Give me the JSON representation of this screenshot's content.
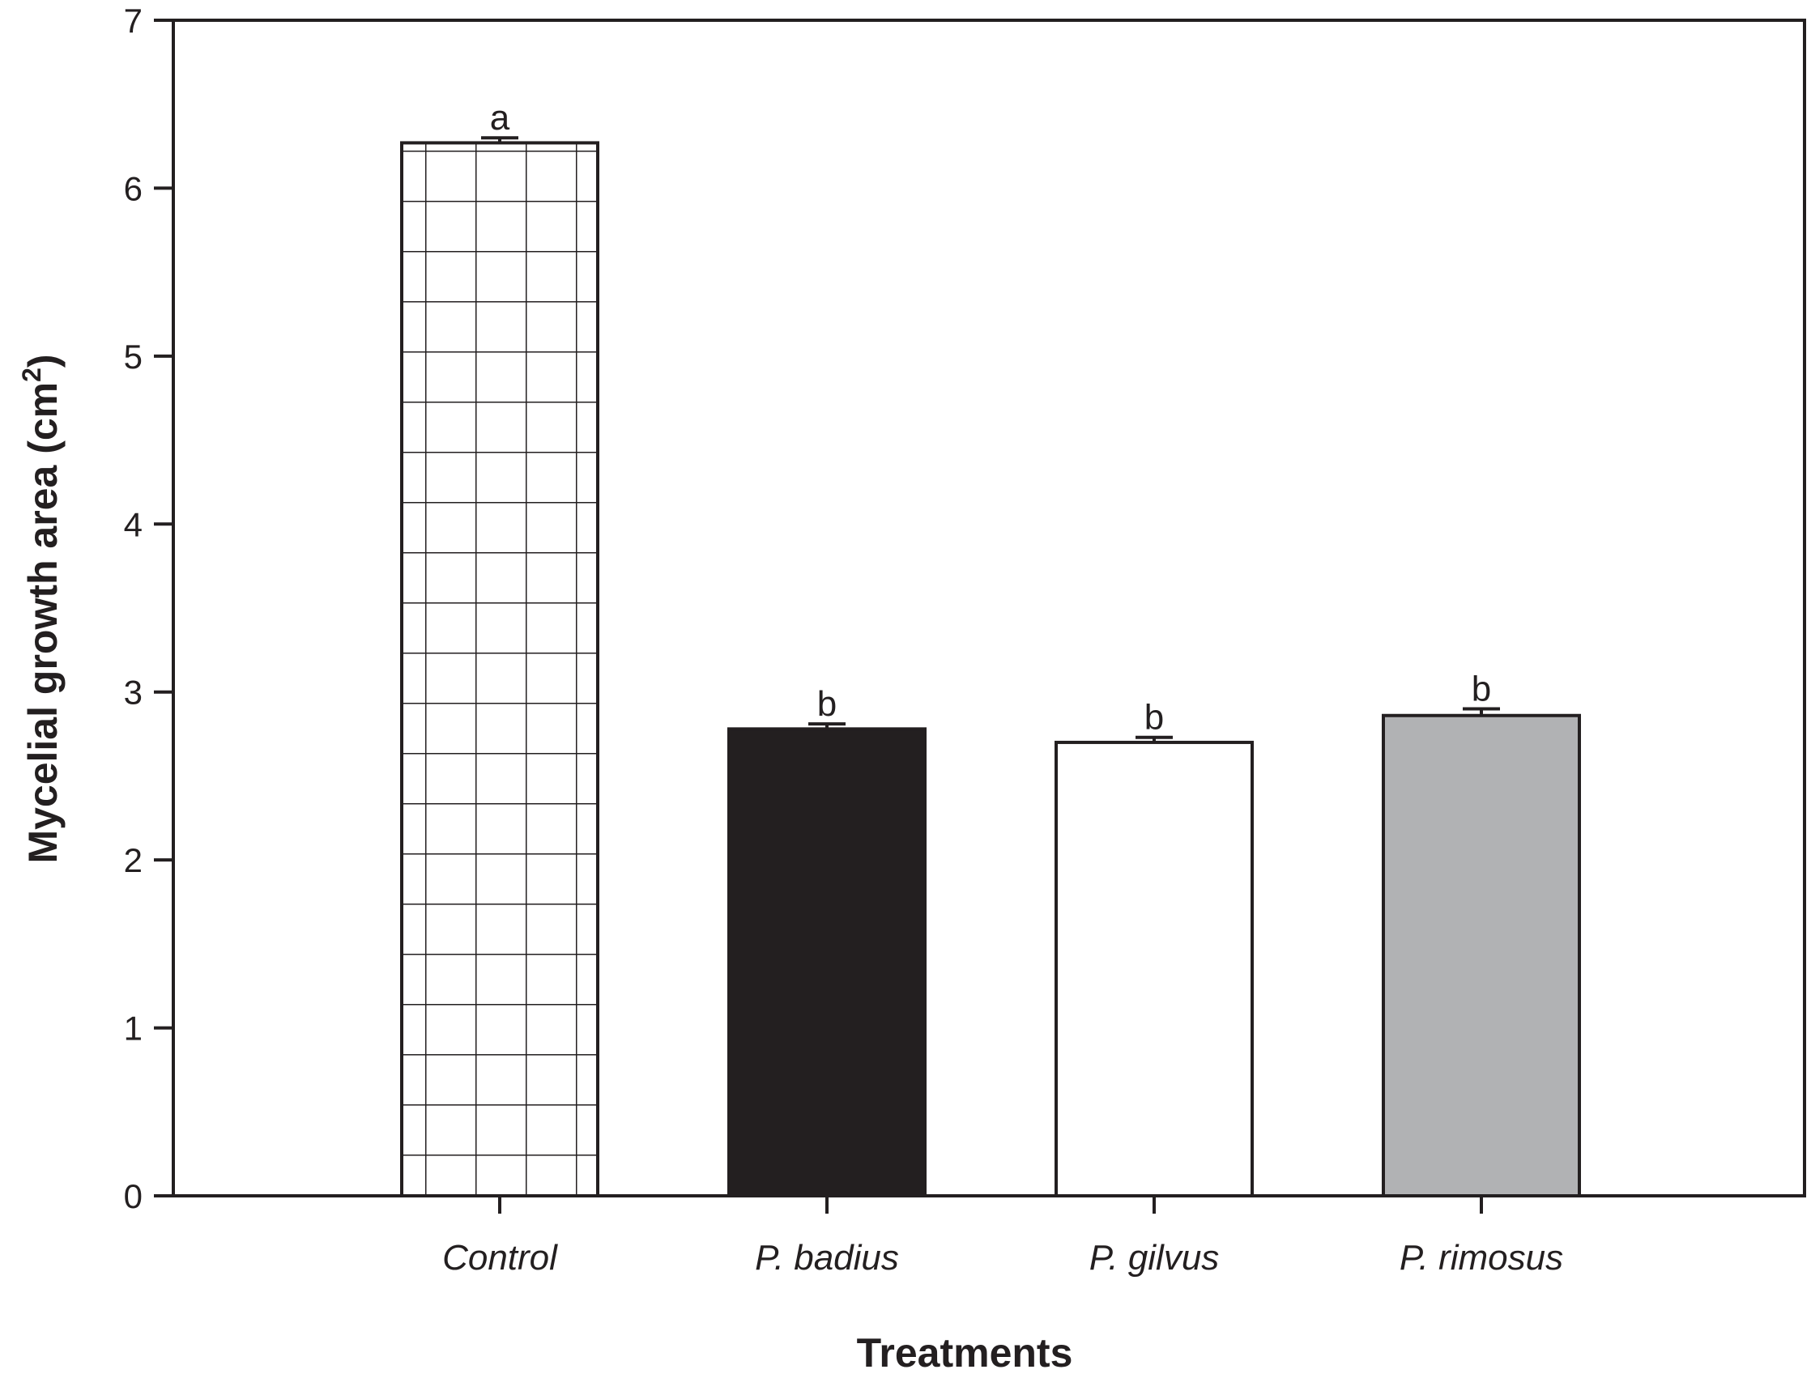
{
  "chart_data": {
    "type": "bar",
    "categories": [
      "Control",
      "P. badius",
      "P. gilvus",
      "P. rimosus"
    ],
    "values": [
      6.27,
      2.78,
      2.7,
      2.86
    ],
    "errors": [
      0.03,
      0.03,
      0.03,
      0.04
    ],
    "significance": [
      "a",
      "b",
      "b",
      "b"
    ],
    "fills": [
      "hatch-grid",
      "#231f20",
      "#ffffff",
      "#b1b2b4"
    ],
    "title": "",
    "xlabel": "Treatments",
    "ylabel": "Mycelial growth area  (cm",
    "ylabel_sup": "2",
    "ylabel_close": ")",
    "ylim": [
      0,
      7
    ],
    "yticks": [
      "0",
      "1",
      "2",
      "3",
      "4",
      "5",
      "6",
      "7"
    ],
    "grid": false,
    "legend": "none"
  }
}
